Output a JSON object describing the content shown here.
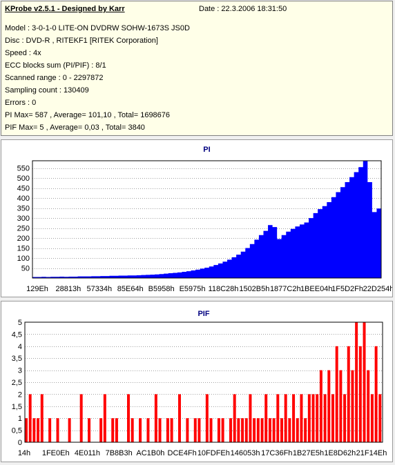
{
  "header": {
    "title": "KProbe v2.5.1 - Designed by Karr",
    "date": "Date : 22.3.2006 18:31:50"
  },
  "info_lines": [
    "Model : 3-0-1-0 LITE-ON DVDRW SOHW-1673S JS0D",
    "Disc : DVD-R , RITEKF1 [RITEK Corporation]",
    "Speed : 4x",
    "ECC blocks sum (PI/PIF) : 8/1",
    "Scanned range : 0 - 2297872",
    "Sampling count : 130409",
    "Errors : 0",
    "PI Max= 587 , Average= 101,10 , Total= 1698676",
    "PIF Max= 5 , Average= 0,03 , Total= 3840"
  ],
  "colors": {
    "pi_fill": "#0000ff",
    "pif_fill": "#ff0000",
    "title_color": "#000080",
    "grid": "#a0a0a0"
  },
  "chart_data": [
    {
      "type": "area",
      "title": "PI",
      "xlabel": "",
      "ylabel": "",
      "ylim": [
        0,
        587
      ],
      "yticks": [
        50,
        100,
        150,
        200,
        250,
        300,
        350,
        400,
        450,
        500,
        550
      ],
      "ytick_labels": [
        "50",
        "100",
        "150",
        "200",
        "250",
        "300",
        "350",
        "400",
        "450",
        "500",
        "550"
      ],
      "xtick_labels": [
        "129Eh",
        "28813h",
        "57334h",
        "85E64h",
        "B5958h",
        "E5975h",
        "118C28h",
        "1502B5h",
        "1877C2h",
        "1BEE04h",
        "1F5D2Fh",
        "22D254h"
      ],
      "grid": true,
      "series": [
        {
          "values": [
            5,
            5,
            6,
            5,
            6,
            6,
            7,
            6,
            7,
            7,
            8,
            8,
            8,
            9,
            9,
            10,
            10,
            11,
            11,
            12,
            12,
            13,
            13,
            14,
            15,
            16,
            17,
            18,
            20,
            22,
            24,
            26,
            28,
            31,
            34,
            38,
            42,
            47,
            52,
            58,
            65,
            73,
            82,
            92,
            104,
            117,
            132,
            150,
            170,
            192,
            215,
            236,
            265,
            255,
            195,
            215,
            232,
            246,
            258,
            268,
            278,
            300,
            325,
            345,
            360,
            380,
            405,
            430,
            455,
            480,
            505,
            530,
            555,
            585,
            480,
            330,
            348
          ]
        }
      ]
    },
    {
      "type": "bar",
      "title": "PIF",
      "xlabel": "",
      "ylabel": "",
      "ylim": [
        0,
        5
      ],
      "yticks": [
        0,
        0.5,
        1,
        1.5,
        2,
        2.5,
        3,
        3.5,
        4,
        4.5,
        5
      ],
      "ytick_labels": [
        "0",
        "0,5",
        "1",
        "1,5",
        "2",
        "2,5",
        "3",
        "3,5",
        "4",
        "4,5",
        "5"
      ],
      "xtick_labels": [
        "14h",
        "1FE0Eh",
        "4E011h",
        "7B8B3h",
        "AC1B0h",
        "DCE4Fh",
        "10FDFEh",
        "146053h",
        "17C36Fh",
        "1B27E5h",
        "1E8D62h",
        "21F14Eh"
      ],
      "grid": true,
      "series": [
        {
          "values": [
            1,
            2,
            1,
            1,
            2,
            0,
            1,
            0,
            1,
            0,
            0,
            1,
            0,
            0,
            2,
            0,
            1,
            0,
            0,
            1,
            2,
            0,
            1,
            1,
            0,
            0,
            2,
            1,
            0,
            1,
            0,
            1,
            0,
            2,
            1,
            0,
            1,
            1,
            0,
            2,
            0,
            1,
            0,
            1,
            1,
            0,
            2,
            1,
            0,
            1,
            1,
            0,
            1,
            2,
            1,
            1,
            1,
            2,
            1,
            1,
            1,
            2,
            1,
            1,
            2,
            1,
            2,
            1,
            2,
            1,
            2,
            1,
            2,
            2,
            2,
            3,
            2,
            3,
            2,
            4,
            3,
            2,
            4,
            3,
            5,
            4,
            5,
            3,
            2,
            4,
            2
          ]
        }
      ]
    }
  ]
}
